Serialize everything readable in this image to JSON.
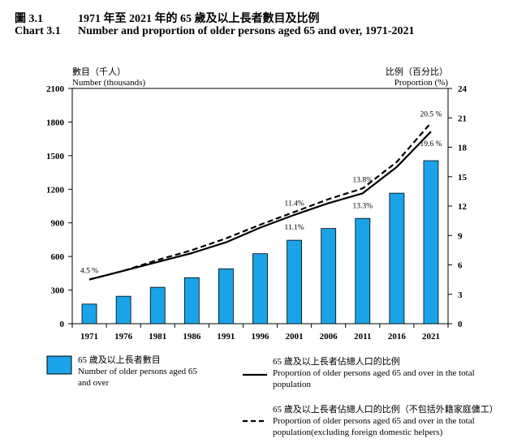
{
  "header": {
    "zh_number": "圖 3.1",
    "zh_title": "1971 年至 2021 年的 65 歲及以上長者數目及比例",
    "en_number": "Chart 3.1",
    "en_title": "Number and proportion of older persons aged 65 and over, 1971-2021"
  },
  "chart_data": {
    "type": "bar",
    "categories": [
      "1971",
      "1976",
      "1981",
      "1986",
      "1991",
      "1996",
      "2001",
      "2006",
      "2011",
      "2016",
      "2021"
    ],
    "left_axis": {
      "label_zh": "數目（千人）",
      "label_en": "Number (thousands)",
      "ylim": [
        0,
        2100
      ],
      "ticks": [
        "0",
        "300",
        "600",
        "900",
        "1200",
        "1500",
        "1800",
        "2100"
      ]
    },
    "right_axis": {
      "label_zh": "比例（百分比）",
      "label_en": "Proportion (%)",
      "ylim": [
        0,
        24
      ],
      "ticks": [
        "0",
        "3",
        "6",
        "9",
        "12",
        "15",
        "18",
        "21",
        "24"
      ]
    },
    "series": [
      {
        "type": "bar",
        "axis": "left",
        "color": "#1aa3e8",
        "label_zh": "65 歲及以上長者數目",
        "label_en": "Number of older persons aged 65 and over",
        "values": [
          175,
          245,
          325,
          410,
          490,
          625,
          745,
          850,
          940,
          1165,
          1455
        ]
      },
      {
        "type": "line",
        "style": "solid",
        "axis": "right",
        "label_zh": "65 歲及以上長者佔總人口的比例",
        "label_en": "Proportion of older persons aged 65 and over in the total population",
        "values": [
          4.5,
          5.4,
          6.3,
          7.2,
          8.3,
          9.8,
          11.1,
          12.3,
          13.3,
          16.0,
          19.6
        ]
      },
      {
        "type": "line",
        "style": "dashed",
        "axis": "right",
        "label_zh": "65 歲及以上長者佔總人口的比例（不包括外籍家庭傭工）",
        "label_en": "Proportion of older persons aged 65 and over in the total population(excluding foreign domestic helpers)",
        "values": [
          4.5,
          5.4,
          6.5,
          7.5,
          8.7,
          10.1,
          11.4,
          12.7,
          13.8,
          16.5,
          20.5
        ]
      }
    ],
    "annotations": [
      {
        "category": "1971",
        "series": "solid",
        "text": "4.5 %"
      },
      {
        "category": "2001",
        "series": "dashed",
        "text": "11.4%"
      },
      {
        "category": "2001",
        "series": "solid",
        "text": "11.1%"
      },
      {
        "category": "2011",
        "series": "dashed",
        "text": "13.8%"
      },
      {
        "category": "2011",
        "series": "solid",
        "text": "13.3%"
      },
      {
        "category": "2021",
        "series": "dashed",
        "text": "20.5 %"
      },
      {
        "category": "2021",
        "series": "solid",
        "text": "19.6 %"
      }
    ],
    "grid": false,
    "legend": "bottom"
  }
}
